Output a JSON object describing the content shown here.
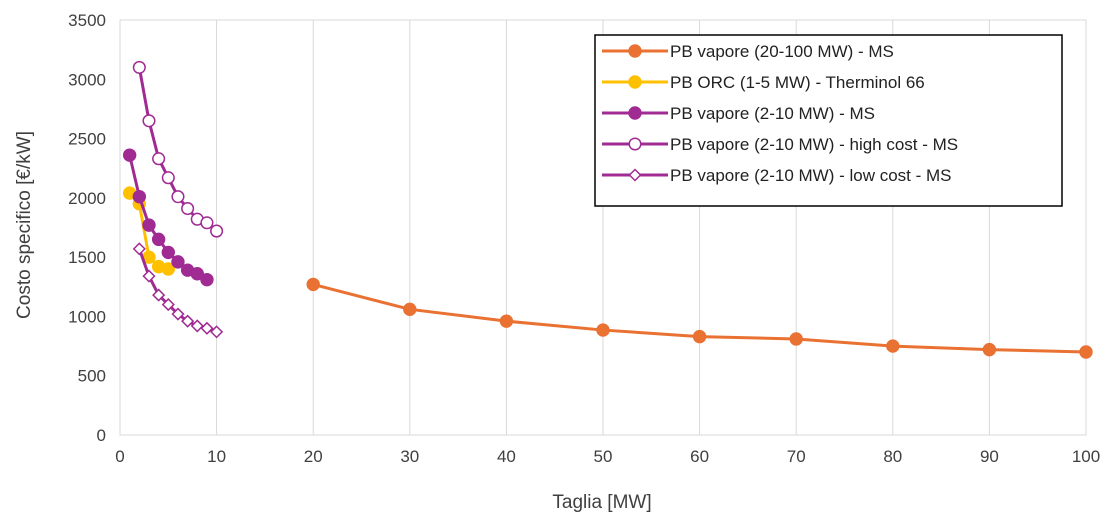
{
  "chart_data": {
    "type": "line",
    "title": "",
    "xlabel": "Taglia [MW]",
    "ylabel": "Costo specifico  [€/kW]",
    "xlim": [
      0,
      100
    ],
    "ylim": [
      0,
      3500
    ],
    "xticks": [
      0,
      10,
      20,
      30,
      40,
      50,
      60,
      70,
      80,
      90,
      100
    ],
    "yticks": [
      0,
      500,
      1000,
      1500,
      2000,
      2500,
      3000,
      3500
    ],
    "grid": "vertical",
    "legend_position": "top-right",
    "series": [
      {
        "name": "PB vapore (20-100 MW) - MS",
        "color": "#E97132",
        "marker": "circle-filled",
        "x": [
          20,
          30,
          40,
          50,
          60,
          70,
          80,
          90,
          100
        ],
        "y": [
          1270,
          1060,
          960,
          885,
          830,
          810,
          750,
          720,
          700
        ]
      },
      {
        "name": "PB ORC (1-5 MW) - Therminol 66",
        "color": "#FFC000",
        "marker": "circle-filled",
        "x": [
          1,
          2,
          3,
          4,
          5
        ],
        "y": [
          2040,
          1950,
          1500,
          1420,
          1400
        ]
      },
      {
        "name": "PB vapore (2-10 MW) - MS",
        "color": "#A02B93",
        "marker": "circle-filled",
        "x": [
          1,
          2,
          3,
          4,
          5,
          6,
          7,
          8,
          9
        ],
        "y": [
          2360,
          2010,
          1770,
          1650,
          1540,
          1460,
          1390,
          1360,
          1310
        ]
      },
      {
        "name": "PB vapore (2-10 MW) - high cost - MS",
        "color": "#A02B93",
        "marker": "circle-open",
        "x": [
          2,
          3,
          4,
          5,
          6,
          7,
          8,
          9,
          10
        ],
        "y": [
          3100,
          2650,
          2330,
          2170,
          2010,
          1910,
          1820,
          1790,
          1720
        ]
      },
      {
        "name": "PB vapore (2-10 MW) - low cost - MS",
        "color": "#A02B93",
        "marker": "diamond-open",
        "x": [
          2,
          3,
          4,
          5,
          6,
          7,
          8,
          9,
          10
        ],
        "y": [
          1570,
          1340,
          1180,
          1100,
          1020,
          960,
          920,
          900,
          870
        ]
      }
    ]
  }
}
